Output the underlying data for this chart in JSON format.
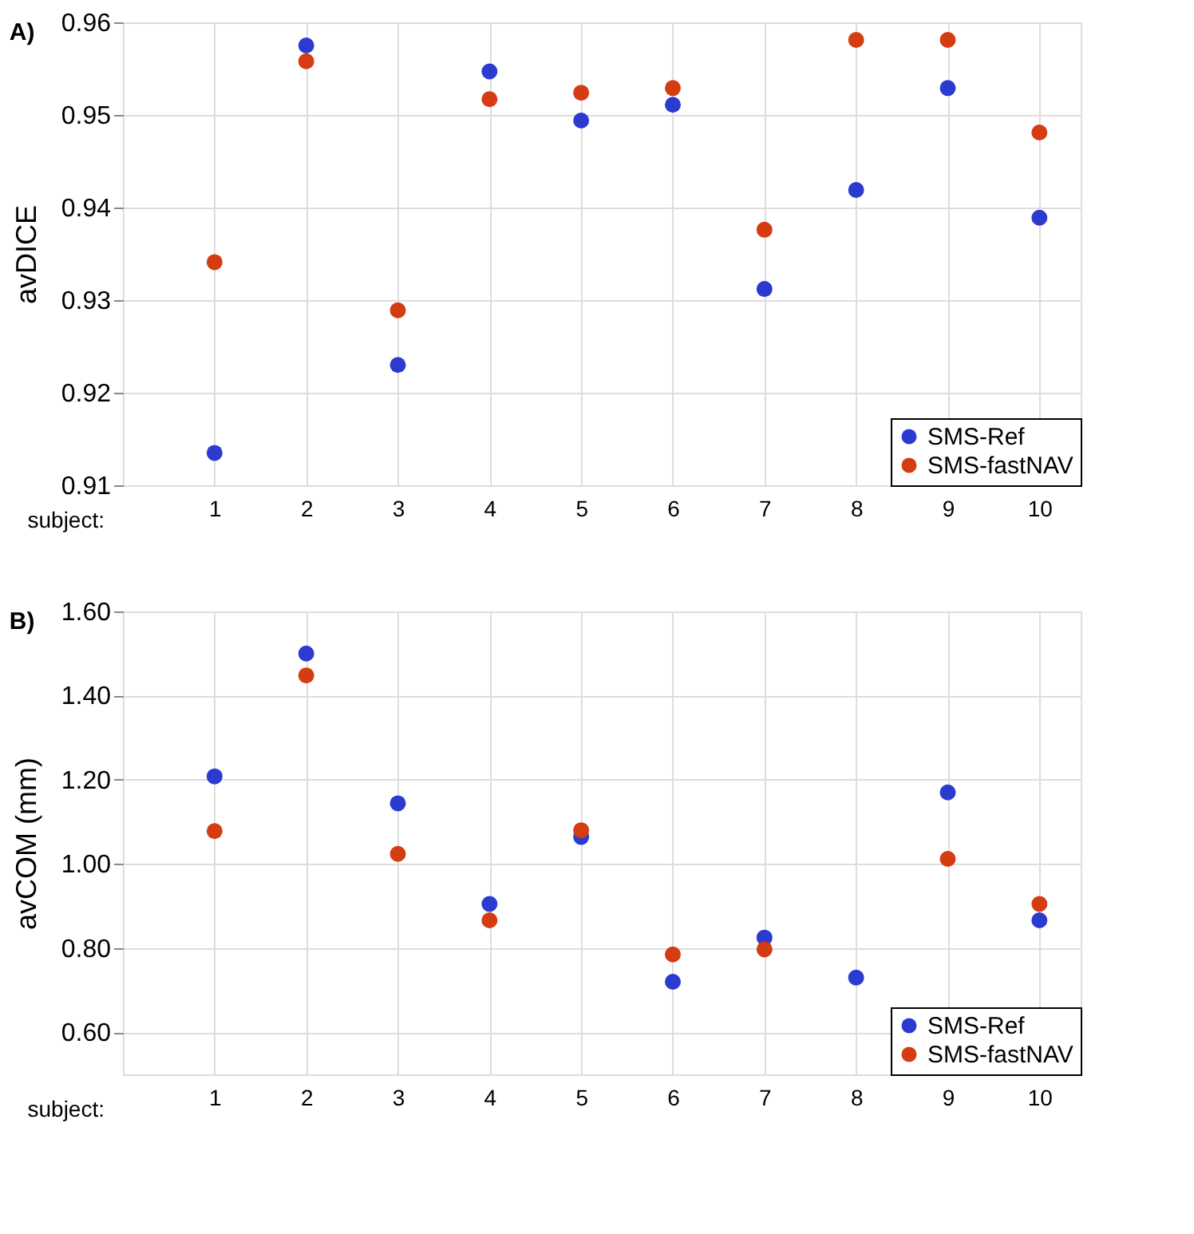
{
  "chart_data": [
    {
      "type": "scatter",
      "title": "A)",
      "xlabel": "subject:",
      "ylabel": "avDICE",
      "x": [
        1,
        2,
        3,
        4,
        5,
        6,
        7,
        8,
        9,
        10
      ],
      "xlim": [
        0,
        10.45
      ],
      "xticks": [
        1,
        2,
        3,
        4,
        5,
        6,
        7,
        8,
        9,
        10
      ],
      "ylim": [
        0.91,
        0.96
      ],
      "yticks": [
        0.91,
        0.92,
        0.93,
        0.94,
        0.95,
        0.96
      ],
      "grid": true,
      "legend": "bottom right",
      "marker": "circle",
      "series": [
        {
          "name": "SMS-Ref",
          "color": "#2b3bd0",
          "values": [
            0.9135,
            0.9575,
            0.923,
            0.9547,
            0.9494,
            0.9511,
            0.9312,
            0.9419,
            0.9529,
            0.9389
          ]
        },
        {
          "name": "SMS-fastNAV",
          "color": "#d43c12",
          "values": [
            0.9341,
            0.9558,
            0.9289,
            0.9517,
            0.9524,
            0.9529,
            0.9376,
            0.9581,
            0.9581,
            0.9481
          ]
        }
      ]
    },
    {
      "type": "scatter",
      "title": "B)",
      "xlabel": "subject:",
      "ylabel": "avCOM (mm)",
      "x": [
        1,
        2,
        3,
        4,
        5,
        6,
        7,
        8,
        9,
        10
      ],
      "xlim": [
        0,
        10.45
      ],
      "xticks": [
        1,
        2,
        3,
        4,
        5,
        6,
        7,
        8,
        9,
        10
      ],
      "ylim": [
        0.5,
        1.6
      ],
      "yticks": [
        {
          "value": 0.6,
          "label": "0.60"
        },
        {
          "value": 0.8,
          "label": "0.80"
        },
        {
          "value": 1.0,
          "label": "1.00"
        },
        {
          "value": 1.2,
          "label": "1.20"
        },
        {
          "value": 1.4,
          "label": "1.40"
        },
        {
          "value": 1.6,
          "label": "1.60"
        }
      ],
      "grid": true,
      "legend": "bottom right",
      "marker": "circle",
      "series": [
        {
          "name": "SMS-Ref",
          "color": "#2b3bd0",
          "values": [
            1.208,
            1.5,
            1.144,
            0.905,
            1.064,
            0.72,
            0.825,
            0.73,
            1.17,
            0.866
          ]
        },
        {
          "name": "SMS-fastNAV",
          "color": "#d43c12",
          "values": [
            1.078,
            1.448,
            1.024,
            0.866,
            1.08,
            0.785,
            0.797,
            null,
            1.012,
            0.905
          ]
        }
      ]
    }
  ]
}
